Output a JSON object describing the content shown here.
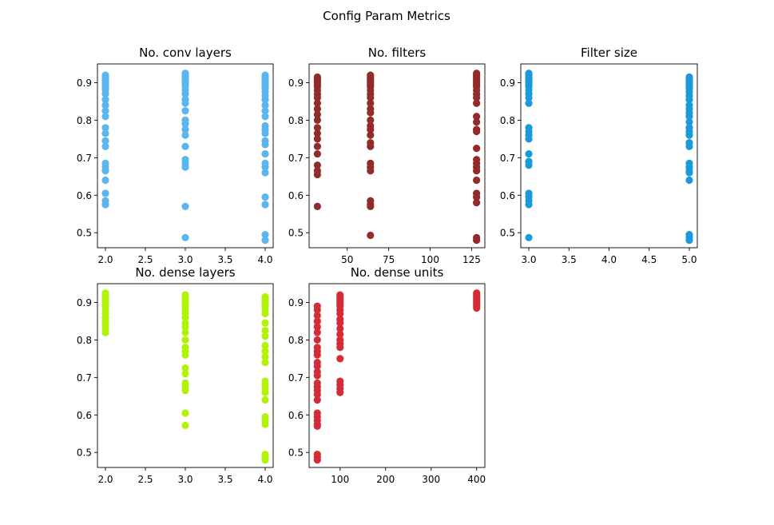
{
  "figure": {
    "suptitle": "Config Param Metrics"
  },
  "chart_data": [
    {
      "type": "scatter",
      "title": "No. conv layers",
      "color": "#5bb5ee",
      "xlim": [
        1.9,
        4.1
      ],
      "ylim": [
        0.46,
        0.95
      ],
      "xticks": [
        2.0,
        2.5,
        3.0,
        3.5,
        4.0
      ],
      "xtick_labels": [
        "2.0",
        "2.5",
        "3.0",
        "3.5",
        "4.0"
      ],
      "yticks": [
        0.5,
        0.6,
        0.7,
        0.8,
        0.9
      ],
      "ytick_labels": [
        "0.5",
        "0.6",
        "0.7",
        "0.8",
        "0.9"
      ],
      "series": [
        {
          "x": 2.0,
          "y": [
            0.92,
            0.915,
            0.91,
            0.905,
            0.9,
            0.895,
            0.89,
            0.885,
            0.88,
            0.87,
            0.855,
            0.84,
            0.825,
            0.81,
            0.78,
            0.765,
            0.745,
            0.73,
            0.685,
            0.675,
            0.665,
            0.64,
            0.605,
            0.585,
            0.575
          ]
        },
        {
          "x": 3.0,
          "y": [
            0.925,
            0.92,
            0.915,
            0.91,
            0.905,
            0.9,
            0.895,
            0.89,
            0.88,
            0.87,
            0.855,
            0.845,
            0.825,
            0.8,
            0.79,
            0.775,
            0.76,
            0.73,
            0.695,
            0.685,
            0.675,
            0.57,
            0.487
          ]
        },
        {
          "x": 4.0,
          "y": [
            0.92,
            0.915,
            0.91,
            0.905,
            0.9,
            0.895,
            0.89,
            0.885,
            0.875,
            0.865,
            0.855,
            0.84,
            0.825,
            0.81,
            0.785,
            0.775,
            0.765,
            0.745,
            0.735,
            0.71,
            0.685,
            0.675,
            0.66,
            0.595,
            0.575,
            0.495,
            0.48
          ]
        }
      ]
    },
    {
      "type": "scatter",
      "title": "No. filters",
      "color": "#922b2b",
      "xlim": [
        27,
        133
      ],
      "ylim": [
        0.46,
        0.95
      ],
      "xticks": [
        50,
        75,
        100,
        125
      ],
      "xtick_labels": [
        "50",
        "75",
        "100",
        "125"
      ],
      "yticks": [
        0.5,
        0.6,
        0.7,
        0.8,
        0.9
      ],
      "ytick_labels": [
        "0.5",
        "0.6",
        "0.7",
        "0.8",
        "0.9"
      ],
      "series": [
        {
          "x": 32,
          "y": [
            0.915,
            0.91,
            0.905,
            0.9,
            0.895,
            0.89,
            0.88,
            0.87,
            0.86,
            0.845,
            0.83,
            0.815,
            0.8,
            0.78,
            0.765,
            0.75,
            0.73,
            0.71,
            0.68,
            0.665,
            0.655,
            0.57
          ]
        },
        {
          "x": 64,
          "y": [
            0.92,
            0.915,
            0.91,
            0.905,
            0.9,
            0.895,
            0.89,
            0.88,
            0.87,
            0.86,
            0.845,
            0.83,
            0.82,
            0.8,
            0.785,
            0.775,
            0.76,
            0.74,
            0.73,
            0.685,
            0.675,
            0.665,
            0.585,
            0.575,
            0.57,
            0.493
          ]
        },
        {
          "x": 128,
          "y": [
            0.925,
            0.92,
            0.915,
            0.91,
            0.905,
            0.9,
            0.895,
            0.89,
            0.88,
            0.87,
            0.86,
            0.845,
            0.81,
            0.795,
            0.775,
            0.77,
            0.725,
            0.695,
            0.685,
            0.675,
            0.665,
            0.64,
            0.605,
            0.595,
            0.58,
            0.487,
            0.48
          ]
        }
      ]
    },
    {
      "type": "scatter",
      "title": "Filter size",
      "color": "#1a9ad8",
      "xlim": [
        2.9,
        5.1
      ],
      "ylim": [
        0.46,
        0.95
      ],
      "xticks": [
        3.0,
        3.5,
        4.0,
        4.5,
        5.0
      ],
      "xtick_labels": [
        "3.0",
        "3.5",
        "4.0",
        "4.5",
        "5.0"
      ],
      "yticks": [
        0.5,
        0.6,
        0.7,
        0.8,
        0.9
      ],
      "ytick_labels": [
        "0.5",
        "0.6",
        "0.7",
        "0.8",
        "0.9"
      ],
      "series": [
        {
          "x": 3.0,
          "y": [
            0.925,
            0.92,
            0.915,
            0.91,
            0.905,
            0.9,
            0.895,
            0.89,
            0.88,
            0.87,
            0.86,
            0.845,
            0.78,
            0.77,
            0.76,
            0.75,
            0.71,
            0.69,
            0.68,
            0.605,
            0.595,
            0.585,
            0.575,
            0.487
          ]
        },
        {
          "x": 5.0,
          "y": [
            0.915,
            0.91,
            0.905,
            0.9,
            0.895,
            0.89,
            0.885,
            0.875,
            0.865,
            0.855,
            0.84,
            0.83,
            0.82,
            0.81,
            0.795,
            0.78,
            0.77,
            0.76,
            0.74,
            0.73,
            0.685,
            0.675,
            0.665,
            0.66,
            0.64,
            0.495,
            0.487,
            0.48
          ]
        }
      ]
    },
    {
      "type": "scatter",
      "title": "No. dense layers",
      "color": "#b2f20a",
      "xlim": [
        1.9,
        4.1
      ],
      "ylim": [
        0.46,
        0.95
      ],
      "xticks": [
        2.0,
        2.5,
        3.0,
        3.5,
        4.0
      ],
      "xtick_labels": [
        "2.0",
        "2.5",
        "3.0",
        "3.5",
        "4.0"
      ],
      "yticks": [
        0.5,
        0.6,
        0.7,
        0.8,
        0.9
      ],
      "ytick_labels": [
        "0.5",
        "0.6",
        "0.7",
        "0.8",
        "0.9"
      ],
      "series": [
        {
          "x": 2.0,
          "y": [
            0.925,
            0.92,
            0.915,
            0.91,
            0.905,
            0.9,
            0.895,
            0.89,
            0.88,
            0.87,
            0.86,
            0.85,
            0.84,
            0.83,
            0.82
          ]
        },
        {
          "x": 3.0,
          "y": [
            0.92,
            0.915,
            0.91,
            0.905,
            0.9,
            0.895,
            0.89,
            0.88,
            0.87,
            0.86,
            0.845,
            0.835,
            0.82,
            0.8,
            0.78,
            0.77,
            0.76,
            0.725,
            0.71,
            0.685,
            0.675,
            0.665,
            0.605,
            0.572
          ]
        },
        {
          "x": 4.0,
          "y": [
            0.915,
            0.91,
            0.905,
            0.9,
            0.895,
            0.89,
            0.88,
            0.87,
            0.845,
            0.825,
            0.81,
            0.785,
            0.77,
            0.755,
            0.74,
            0.69,
            0.68,
            0.67,
            0.66,
            0.64,
            0.595,
            0.585,
            0.575,
            0.495,
            0.487,
            0.48
          ]
        }
      ]
    },
    {
      "type": "scatter",
      "title": "No. dense units",
      "color": "#d42c37",
      "xlim": [
        32,
        418
      ],
      "ylim": [
        0.46,
        0.95
      ],
      "xticks": [
        100,
        200,
        300,
        400
      ],
      "xtick_labels": [
        "100",
        "200",
        "300",
        "400"
      ],
      "yticks": [
        0.5,
        0.6,
        0.7,
        0.8,
        0.9
      ],
      "ytick_labels": [
        "0.5",
        "0.6",
        "0.7",
        "0.8",
        "0.9"
      ],
      "series": [
        {
          "x": 50,
          "y": [
            0.89,
            0.88,
            0.865,
            0.85,
            0.835,
            0.82,
            0.8,
            0.78,
            0.77,
            0.76,
            0.74,
            0.73,
            0.715,
            0.705,
            0.685,
            0.675,
            0.665,
            0.655,
            0.64,
            0.605,
            0.595,
            0.585,
            0.575,
            0.57,
            0.495,
            0.487,
            0.48
          ]
        },
        {
          "x": 100,
          "y": [
            0.92,
            0.915,
            0.91,
            0.905,
            0.9,
            0.895,
            0.89,
            0.88,
            0.87,
            0.855,
            0.845,
            0.83,
            0.815,
            0.8,
            0.79,
            0.78,
            0.75,
            0.69,
            0.68,
            0.67,
            0.66
          ]
        },
        {
          "x": 400,
          "y": [
            0.925,
            0.92,
            0.915,
            0.91,
            0.905,
            0.9,
            0.895,
            0.89,
            0.885
          ]
        }
      ]
    }
  ]
}
